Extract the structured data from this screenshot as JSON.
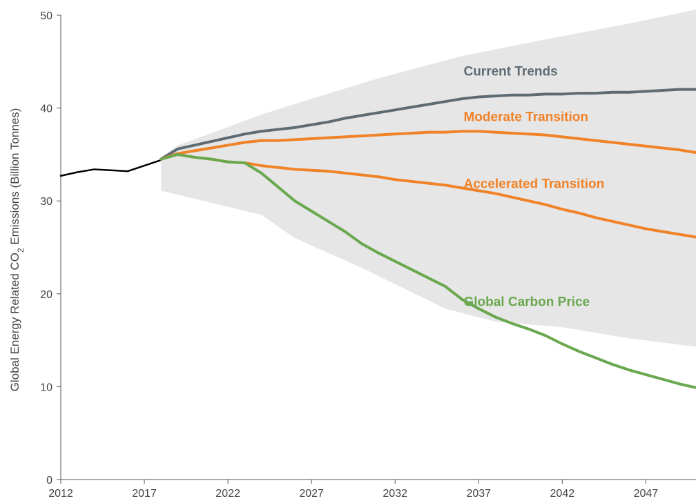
{
  "chart_data": {
    "type": "line",
    "ylabel_parts": [
      "Global Energy Related CO",
      "2",
      " Emissions (Billion Tonnes)"
    ],
    "xlim": [
      2012,
      2050
    ],
    "ylim": [
      0,
      50
    ],
    "x_ticks": [
      2012,
      2017,
      2022,
      2027,
      2032,
      2037,
      2042,
      2047
    ],
    "y_ticks": [
      0,
      10,
      20,
      30,
      40,
      50
    ],
    "grid": false,
    "band": {
      "color": "#e6e6e6",
      "upper": [
        [
          2018,
          34.7
        ],
        [
          2019,
          36.0
        ],
        [
          2021,
          37.3
        ],
        [
          2024,
          39.3
        ],
        [
          2027,
          41.0
        ],
        [
          2031,
          43.2
        ],
        [
          2036,
          45.6
        ],
        [
          2041,
          47.4
        ],
        [
          2046,
          49.1
        ],
        [
          2050,
          50.6
        ]
      ],
      "lower": [
        [
          2018,
          31.1
        ],
        [
          2021,
          29.8
        ],
        [
          2024,
          28.5
        ],
        [
          2026,
          26.0
        ],
        [
          2030,
          22.8
        ],
        [
          2035,
          18.4
        ],
        [
          2038,
          17.0
        ],
        [
          2042,
          16.4
        ],
        [
          2046,
          15.2
        ],
        [
          2050,
          14.3
        ]
      ]
    },
    "series": [
      {
        "color": "#000000",
        "x": [
          2012,
          2013,
          2014,
          2015,
          2016,
          2017,
          2018
        ],
        "y": [
          32.7,
          33.1,
          33.4,
          33.3,
          33.2,
          33.8,
          34.4
        ]
      },
      {
        "name": "Current Trends",
        "color": "#5f6b72",
        "x": [
          2018,
          2019,
          2020,
          2021,
          2022,
          2023,
          2024,
          2025,
          2026,
          2027,
          2028,
          2029,
          2030,
          2031,
          2032,
          2033,
          2034,
          2035,
          2036,
          2037,
          2038,
          2039,
          2040,
          2041,
          2042,
          2043,
          2044,
          2045,
          2046,
          2047,
          2048,
          2049,
          2050
        ],
        "y": [
          34.5,
          35.6,
          36.0,
          36.4,
          36.8,
          37.2,
          37.5,
          37.7,
          37.9,
          38.2,
          38.5,
          38.9,
          39.2,
          39.5,
          39.8,
          40.1,
          40.4,
          40.7,
          41.0,
          41.2,
          41.3,
          41.4,
          41.4,
          41.5,
          41.5,
          41.6,
          41.6,
          41.7,
          41.7,
          41.8,
          41.9,
          42.0,
          42.0
        ]
      },
      {
        "name": "Moderate Transition",
        "color": "#f08228",
        "x": [
          2018,
          2019,
          2020,
          2021,
          2022,
          2023,
          2024,
          2025,
          2026,
          2027,
          2028,
          2029,
          2030,
          2031,
          2032,
          2033,
          2034,
          2035,
          2036,
          2037,
          2038,
          2039,
          2040,
          2041,
          2042,
          2043,
          2044,
          2045,
          2046,
          2047,
          2048,
          2049,
          2050
        ],
        "y": [
          34.5,
          35.1,
          35.4,
          35.7,
          36.0,
          36.3,
          36.5,
          36.5,
          36.6,
          36.7,
          36.8,
          36.9,
          37.0,
          37.1,
          37.2,
          37.3,
          37.4,
          37.4,
          37.5,
          37.5,
          37.4,
          37.3,
          37.2,
          37.1,
          36.9,
          36.7,
          36.5,
          36.3,
          36.1,
          35.9,
          35.7,
          35.5,
          35.2
        ]
      },
      {
        "name": "Accelerated Transition",
        "color": "#f08228",
        "x": [
          2018,
          2019,
          2020,
          2021,
          2022,
          2023,
          2024,
          2025,
          2026,
          2027,
          2028,
          2029,
          2030,
          2031,
          2032,
          2033,
          2034,
          2035,
          2036,
          2037,
          2038,
          2039,
          2040,
          2041,
          2042,
          2043,
          2044,
          2045,
          2046,
          2047,
          2048,
          2049,
          2050
        ],
        "y": [
          34.5,
          35.0,
          34.7,
          34.5,
          34.2,
          34.1,
          33.8,
          33.6,
          33.4,
          33.3,
          33.2,
          33.0,
          32.8,
          32.6,
          32.3,
          32.1,
          31.9,
          31.7,
          31.4,
          31.1,
          30.8,
          30.4,
          30.0,
          29.6,
          29.1,
          28.7,
          28.2,
          27.8,
          27.4,
          27.0,
          26.7,
          26.4,
          26.1
        ]
      },
      {
        "name": "Global Carbon Price",
        "color": "#6aa84f",
        "x": [
          2018,
          2019,
          2020,
          2021,
          2022,
          2023,
          2024,
          2025,
          2026,
          2027,
          2028,
          2029,
          2030,
          2031,
          2032,
          2033,
          2034,
          2035,
          2036,
          2037,
          2038,
          2039,
          2040,
          2041,
          2042,
          2043,
          2044,
          2045,
          2046,
          2047,
          2048,
          2049,
          2050
        ],
        "y": [
          34.5,
          35.0,
          34.7,
          34.5,
          34.2,
          34.1,
          33.0,
          31.5,
          30.0,
          28.9,
          27.8,
          26.7,
          25.4,
          24.4,
          23.5,
          22.6,
          21.7,
          20.8,
          19.4,
          18.4,
          17.5,
          16.8,
          16.2,
          15.5,
          14.6,
          13.8,
          13.1,
          12.4,
          11.8,
          11.3,
          10.8,
          10.3,
          9.9
        ]
      }
    ],
    "annotations": [
      {
        "text": "Current Trends",
        "color": "#5f6b72",
        "x": 2036.1,
        "y": 43.5
      },
      {
        "text": "Moderate Transition",
        "color": "#f08228",
        "x": 2036.1,
        "y": 38.6
      },
      {
        "text": "Accelerated Transition",
        "color": "#f08228",
        "x": 2036.1,
        "y": 31.4
      },
      {
        "text": "Global Carbon Price",
        "color": "#6aa84f",
        "x": 2036.1,
        "y": 18.7
      }
    ]
  }
}
